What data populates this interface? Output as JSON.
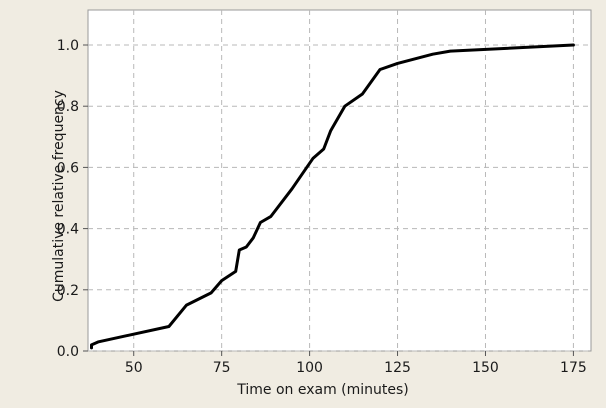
{
  "chart_data": {
    "type": "line",
    "xlabel": "Time on exam (minutes)",
    "ylabel": "Cumulative relative frequency",
    "xlim": [
      37,
      180
    ],
    "ylim": [
      0,
      1.0
    ],
    "grid": true,
    "x_ticks": [
      50,
      75,
      100,
      125,
      150,
      175
    ],
    "x_tick_labels": [
      "50",
      "75",
      "100",
      "125",
      "150",
      "175"
    ],
    "y_ticks": [
      0,
      0.2,
      0.4,
      0.6,
      0.8,
      1.0
    ],
    "y_tick_labels": [
      "0.0",
      "0.2",
      "0.4",
      "0.6",
      "0.8",
      "1.0"
    ],
    "series": [
      {
        "color": "#000000",
        "x": [
          38,
          38,
          40,
          60,
          65,
          72,
          75,
          79,
          80,
          82,
          84,
          86,
          89,
          95,
          101,
          104,
          106,
          110,
          115,
          120,
          125,
          135,
          140,
          175
        ],
        "y": [
          0.01,
          0.02,
          0.03,
          0.08,
          0.15,
          0.19,
          0.23,
          0.26,
          0.33,
          0.34,
          0.37,
          0.42,
          0.44,
          0.53,
          0.63,
          0.66,
          0.72,
          0.8,
          0.84,
          0.92,
          0.94,
          0.97,
          0.98,
          1.0
        ]
      }
    ]
  }
}
